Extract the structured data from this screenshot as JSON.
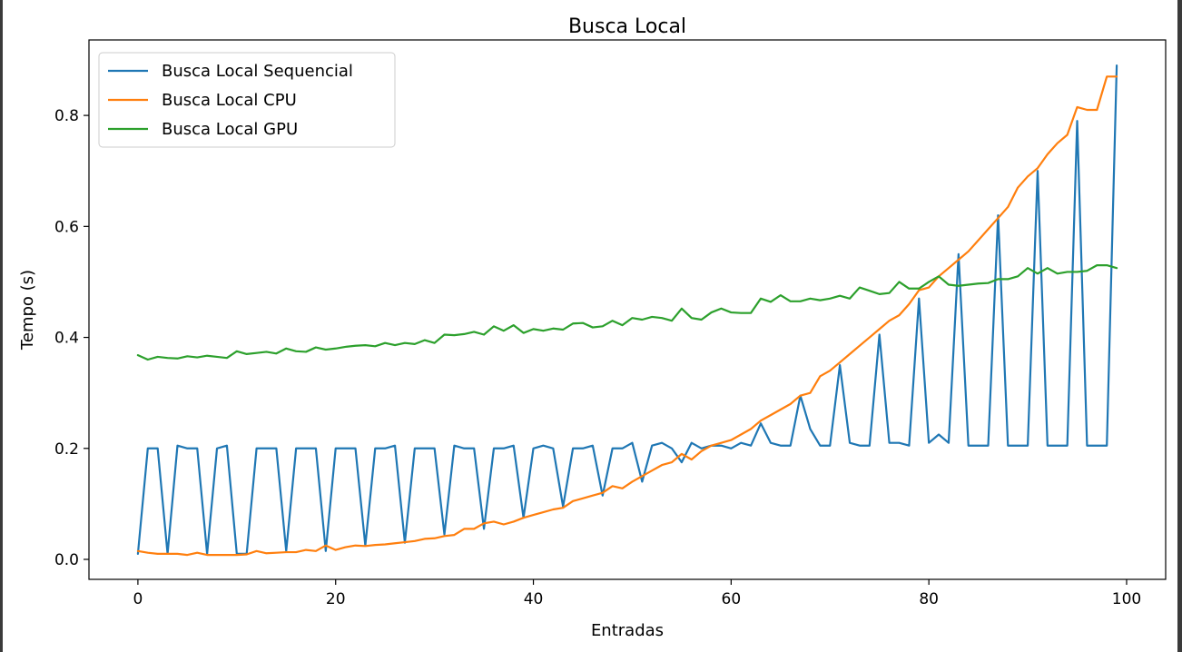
{
  "chart_data": {
    "type": "line",
    "title": "Busca Local",
    "xlabel": "Entradas",
    "ylabel": "Tempo (s)",
    "xlim": [
      -4.95,
      103.95
    ],
    "ylim": [
      -0.036,
      0.936
    ],
    "xticks": [
      0,
      20,
      40,
      60,
      80,
      100
    ],
    "yticks": [
      0.0,
      0.2,
      0.4,
      0.6,
      0.8
    ],
    "xtick_labels": [
      "0",
      "20",
      "40",
      "60",
      "80",
      "100"
    ],
    "ytick_labels": [
      "0.0",
      "0.2",
      "0.4",
      "0.6",
      "0.8"
    ],
    "grid": false,
    "legend_position": "upper left",
    "x": [
      0,
      1,
      2,
      3,
      4,
      5,
      6,
      7,
      8,
      9,
      10,
      11,
      12,
      13,
      14,
      15,
      16,
      17,
      18,
      19,
      20,
      21,
      22,
      23,
      24,
      25,
      26,
      27,
      28,
      29,
      30,
      31,
      32,
      33,
      34,
      35,
      36,
      37,
      38,
      39,
      40,
      41,
      42,
      43,
      44,
      45,
      46,
      47,
      48,
      49,
      50,
      51,
      52,
      53,
      54,
      55,
      56,
      57,
      58,
      59,
      60,
      61,
      62,
      63,
      64,
      65,
      66,
      67,
      68,
      69,
      70,
      71,
      72,
      73,
      74,
      75,
      76,
      77,
      78,
      79,
      80,
      81,
      82,
      83,
      84,
      85,
      86,
      87,
      88,
      89,
      90,
      91,
      92,
      93,
      94,
      95,
      96,
      97,
      98,
      99
    ],
    "series": [
      {
        "name": "Busca Local Sequencial",
        "color": "#1f77b4",
        "values": [
          0.01,
          0.2,
          0.2,
          0.01,
          0.205,
          0.2,
          0.2,
          0.01,
          0.2,
          0.205,
          0.01,
          0.01,
          0.2,
          0.2,
          0.2,
          0.015,
          0.2,
          0.2,
          0.2,
          0.015,
          0.2,
          0.2,
          0.2,
          0.025,
          0.2,
          0.2,
          0.205,
          0.03,
          0.2,
          0.2,
          0.2,
          0.045,
          0.205,
          0.2,
          0.2,
          0.055,
          0.2,
          0.2,
          0.205,
          0.075,
          0.2,
          0.205,
          0.2,
          0.095,
          0.2,
          0.2,
          0.205,
          0.115,
          0.2,
          0.2,
          0.21,
          0.14,
          0.205,
          0.21,
          0.2,
          0.175,
          0.21,
          0.2,
          0.205,
          0.205,
          0.2,
          0.21,
          0.205,
          0.245,
          0.21,
          0.205,
          0.205,
          0.295,
          0.235,
          0.205,
          0.205,
          0.35,
          0.21,
          0.205,
          0.205,
          0.405,
          0.21,
          0.21,
          0.205,
          0.47,
          0.21,
          0.225,
          0.21,
          0.55,
          0.205,
          0.205,
          0.205,
          0.62,
          0.205,
          0.205,
          0.205,
          0.7,
          0.205,
          0.205,
          0.205,
          0.79,
          0.205,
          0.205,
          0.205,
          0.89
        ]
      },
      {
        "name": "Busca Local CPU",
        "color": "#ff7f0e",
        "values": [
          0.015,
          0.012,
          0.01,
          0.01,
          0.01,
          0.008,
          0.012,
          0.008,
          0.008,
          0.008,
          0.008,
          0.009,
          0.015,
          0.011,
          0.012,
          0.013,
          0.013,
          0.017,
          0.015,
          0.025,
          0.017,
          0.022,
          0.025,
          0.024,
          0.026,
          0.027,
          0.029,
          0.031,
          0.033,
          0.037,
          0.038,
          0.042,
          0.044,
          0.055,
          0.055,
          0.065,
          0.068,
          0.063,
          0.068,
          0.075,
          0.08,
          0.085,
          0.09,
          0.093,
          0.105,
          0.11,
          0.115,
          0.12,
          0.132,
          0.128,
          0.14,
          0.15,
          0.16,
          0.17,
          0.175,
          0.19,
          0.18,
          0.195,
          0.205,
          0.21,
          0.215,
          0.225,
          0.235,
          0.25,
          0.26,
          0.27,
          0.28,
          0.295,
          0.3,
          0.33,
          0.34,
          0.355,
          0.37,
          0.385,
          0.4,
          0.415,
          0.43,
          0.44,
          0.46,
          0.485,
          0.49,
          0.51,
          0.525,
          0.54,
          0.555,
          0.575,
          0.595,
          0.615,
          0.635,
          0.67,
          0.69,
          0.705,
          0.73,
          0.75,
          0.765,
          0.815,
          0.81,
          0.81,
          0.87,
          0.87
        ]
      },
      {
        "name": "Busca Local GPU",
        "color": "#2ca02c",
        "values": [
          0.368,
          0.36,
          0.365,
          0.363,
          0.362,
          0.366,
          0.364,
          0.367,
          0.365,
          0.363,
          0.375,
          0.37,
          0.372,
          0.374,
          0.371,
          0.38,
          0.375,
          0.374,
          0.382,
          0.378,
          0.38,
          0.383,
          0.385,
          0.386,
          0.384,
          0.39,
          0.386,
          0.39,
          0.388,
          0.395,
          0.39,
          0.405,
          0.404,
          0.406,
          0.41,
          0.405,
          0.42,
          0.412,
          0.422,
          0.408,
          0.415,
          0.412,
          0.416,
          0.414,
          0.425,
          0.426,
          0.418,
          0.42,
          0.43,
          0.422,
          0.435,
          0.432,
          0.437,
          0.435,
          0.43,
          0.452,
          0.435,
          0.432,
          0.445,
          0.452,
          0.445,
          0.444,
          0.444,
          0.47,
          0.464,
          0.476,
          0.465,
          0.465,
          0.47,
          0.467,
          0.47,
          0.475,
          0.47,
          0.49,
          0.484,
          0.478,
          0.48,
          0.5,
          0.488,
          0.488,
          0.5,
          0.51,
          0.495,
          0.493,
          0.495,
          0.497,
          0.498,
          0.505,
          0.505,
          0.51,
          0.525,
          0.515,
          0.525,
          0.515,
          0.518,
          0.518,
          0.52,
          0.53,
          0.53,
          0.525
        ]
      }
    ]
  }
}
